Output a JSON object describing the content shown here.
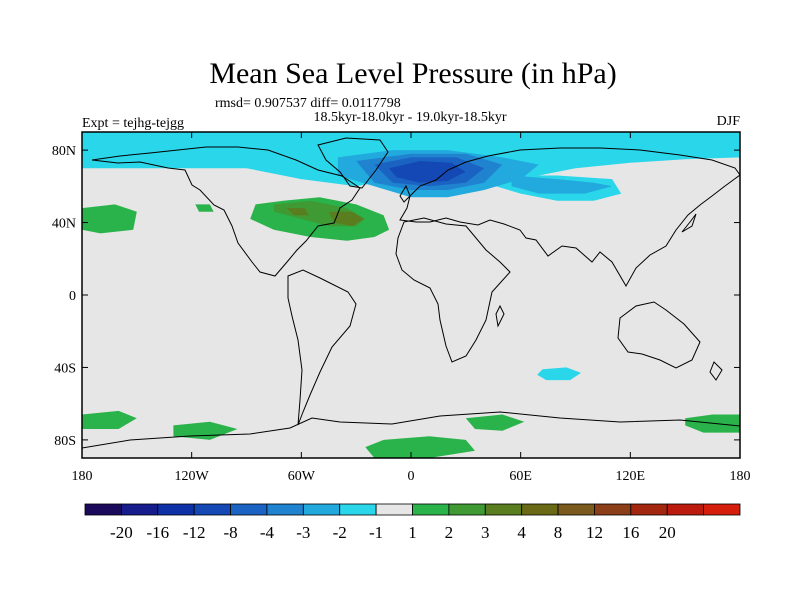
{
  "chart_data": {
    "type": "heatmap",
    "title": "Mean Sea Level Pressure (in hPa)",
    "stats_line": "rmsd= 0.907537 diff= 0.0117798",
    "period_line": "18.5kyr-18.0kyr - 19.0kyr-18.5kyr",
    "experiment": "Expt = tejhg-tejgg",
    "season": "DJF",
    "x_range": [
      -180,
      180
    ],
    "y_range": [
      -90,
      90
    ],
    "x_ticks": [
      {
        "value": -180,
        "label": "180"
      },
      {
        "value": -120,
        "label": "120W"
      },
      {
        "value": -60,
        "label": "60W"
      },
      {
        "value": 0,
        "label": "0"
      },
      {
        "value": 60,
        "label": "60E"
      },
      {
        "value": 120,
        "label": "120E"
      },
      {
        "value": 180,
        "label": "180"
      }
    ],
    "y_ticks": [
      {
        "value": 80,
        "label": "80N"
      },
      {
        "value": 40,
        "label": "40N"
      },
      {
        "value": 0,
        "label": "0"
      },
      {
        "value": -40,
        "label": "40S"
      },
      {
        "value": -80,
        "label": "80S"
      }
    ],
    "colorbar": {
      "colors": [
        "#1b0a5c",
        "#161c8c",
        "#0f31a8",
        "#1448b4",
        "#1b63c3",
        "#1f83cf",
        "#22a9de",
        "#2ad6ea",
        "#e6e6e6",
        "#2ab34a",
        "#3f9a33",
        "#5a7d1f",
        "#6a6a16",
        "#7b5a1e",
        "#8b3e17",
        "#a3260e",
        "#bb1a0c",
        "#d61e0c"
      ],
      "labels": [
        "-20",
        "-16",
        "-12",
        "-8",
        "-4",
        "-3",
        "-2",
        "-1",
        "1",
        "2",
        "3",
        "4",
        "8",
        "12",
        "16",
        "20"
      ]
    },
    "regions": [
      {
        "name": "arctic-negative-band",
        "level": "-1",
        "color": "#2ad6ea",
        "points": [
          [
            -180,
            90
          ],
          [
            180,
            90
          ],
          [
            180,
            76
          ],
          [
            150,
            75
          ],
          [
            120,
            73
          ],
          [
            90,
            70
          ],
          [
            70,
            66
          ],
          [
            40,
            60
          ],
          [
            20,
            56
          ],
          [
            0,
            58
          ],
          [
            -10,
            64
          ],
          [
            -30,
            60
          ],
          [
            -60,
            64
          ],
          [
            -90,
            70
          ],
          [
            -120,
            70
          ],
          [
            -150,
            70
          ],
          [
            -180,
            70
          ]
        ]
      },
      {
        "name": "siberia-negative-lobe",
        "level": "-1",
        "color": "#2ad6ea",
        "points": [
          [
            40,
            62
          ],
          [
            60,
            56
          ],
          [
            80,
            52
          ],
          [
            100,
            52
          ],
          [
            115,
            56
          ],
          [
            110,
            64
          ],
          [
            80,
            66
          ],
          [
            50,
            66
          ]
        ]
      },
      {
        "name": "north-atlantic-negative-2",
        "level": "-2",
        "color": "#22a9de",
        "points": [
          [
            -40,
            76
          ],
          [
            -10,
            80
          ],
          [
            20,
            80
          ],
          [
            50,
            76
          ],
          [
            70,
            72
          ],
          [
            60,
            64
          ],
          [
            40,
            58
          ],
          [
            20,
            54
          ],
          [
            0,
            54
          ],
          [
            -20,
            60
          ],
          [
            -40,
            66
          ]
        ]
      },
      {
        "name": "north-atlantic-negative-3",
        "level": "-3",
        "color": "#1f83cf",
        "points": [
          [
            -30,
            74
          ],
          [
            0,
            78
          ],
          [
            30,
            78
          ],
          [
            50,
            72
          ],
          [
            40,
            62
          ],
          [
            20,
            58
          ],
          [
            0,
            58
          ],
          [
            -20,
            62
          ]
        ]
      },
      {
        "name": "north-atlantic-negative-4",
        "level": "-4",
        "color": "#1b63c3",
        "points": [
          [
            -20,
            72
          ],
          [
            0,
            76
          ],
          [
            25,
            76
          ],
          [
            40,
            70
          ],
          [
            30,
            62
          ],
          [
            10,
            60
          ],
          [
            -10,
            62
          ]
        ]
      },
      {
        "name": "north-atlantic-negative-8",
        "level": "-8",
        "color": "#1448b4",
        "points": [
          [
            -12,
            70
          ],
          [
            5,
            74
          ],
          [
            22,
            73
          ],
          [
            30,
            68
          ],
          [
            20,
            63
          ],
          [
            5,
            62
          ],
          [
            -8,
            65
          ]
        ]
      },
      {
        "name": "asia-negative-2",
        "level": "-2",
        "color": "#22a9de",
        "points": [
          [
            55,
            66
          ],
          [
            80,
            64
          ],
          [
            100,
            62
          ],
          [
            110,
            60
          ],
          [
            95,
            56
          ],
          [
            70,
            56
          ],
          [
            55,
            60
          ]
        ]
      },
      {
        "name": "north-atlantic-positive-1",
        "level": "1",
        "color": "#2ab34a",
        "points": [
          [
            -85,
            50
          ],
          [
            -70,
            52
          ],
          [
            -50,
            54
          ],
          [
            -30,
            50
          ],
          [
            -15,
            44
          ],
          [
            -12,
            36
          ],
          [
            -20,
            32
          ],
          [
            -35,
            30
          ],
          [
            -55,
            32
          ],
          [
            -75,
            36
          ],
          [
            -88,
            42
          ]
        ]
      },
      {
        "name": "north-atlantic-positive-2",
        "level": "2",
        "color": "#3f9a33",
        "points": [
          [
            -75,
            50
          ],
          [
            -55,
            52
          ],
          [
            -35,
            48
          ],
          [
            -25,
            42
          ],
          [
            -30,
            38
          ],
          [
            -45,
            38
          ],
          [
            -60,
            42
          ],
          [
            -75,
            46
          ]
        ]
      },
      {
        "name": "north-atlantic-positive-3",
        "level": "3",
        "color": "#5a7d1f",
        "points": [
          [
            -45,
            46
          ],
          [
            -32,
            46
          ],
          [
            -26,
            42
          ],
          [
            -32,
            38
          ],
          [
            -42,
            40
          ]
        ]
      },
      {
        "name": "north-atlantic-positive-3b",
        "level": "3",
        "color": "#5a7d1f",
        "points": [
          [
            -68,
            48
          ],
          [
            -58,
            48
          ],
          [
            -56,
            44
          ],
          [
            -64,
            44
          ]
        ]
      },
      {
        "name": "north-pacific-positive-1",
        "level": "1",
        "color": "#2ab34a",
        "points": [
          [
            -180,
            48
          ],
          [
            -162,
            50
          ],
          [
            -150,
            46
          ],
          [
            -152,
            36
          ],
          [
            -170,
            34
          ],
          [
            -180,
            36
          ]
        ]
      },
      {
        "name": "gulf-small-positive",
        "level": "1",
        "color": "#2ab34a",
        "points": [
          [
            -118,
            50
          ],
          [
            -110,
            50
          ],
          [
            -108,
            46
          ],
          [
            -116,
            46
          ]
        ]
      },
      {
        "name": "south-indian-negative-1",
        "level": "-1",
        "color": "#2ad6ea",
        "points": [
          [
            72,
            -41
          ],
          [
            85,
            -40
          ],
          [
            93,
            -43
          ],
          [
            87,
            -47
          ],
          [
            74,
            -47
          ],
          [
            69,
            -44
          ]
        ]
      },
      {
        "name": "south-pacific-positive-west",
        "level": "1",
        "color": "#2ab34a",
        "points": [
          [
            -180,
            -66
          ],
          [
            -160,
            -64
          ],
          [
            -150,
            -68
          ],
          [
            -160,
            -74
          ],
          [
            -180,
            -74
          ]
        ]
      },
      {
        "name": "south-pacific-positive-east",
        "level": "1",
        "color": "#2ab34a",
        "points": [
          [
            150,
            -68
          ],
          [
            165,
            -66
          ],
          [
            180,
            -66
          ],
          [
            180,
            -76
          ],
          [
            160,
            -76
          ],
          [
            150,
            -72
          ]
        ]
      },
      {
        "name": "southern-ocean-positive-a",
        "level": "1",
        "color": "#2ab34a",
        "points": [
          [
            -130,
            -72
          ],
          [
            -110,
            -70
          ],
          [
            -95,
            -74
          ],
          [
            -110,
            -80
          ],
          [
            -130,
            -78
          ]
        ]
      },
      {
        "name": "southern-ocean-positive-b",
        "level": "1",
        "color": "#2ab34a",
        "points": [
          [
            30,
            -68
          ],
          [
            50,
            -66
          ],
          [
            62,
            -70
          ],
          [
            50,
            -75
          ],
          [
            35,
            -74
          ]
        ]
      },
      {
        "name": "antarctic-positive",
        "level": "1",
        "color": "#2ab34a",
        "points": [
          [
            -15,
            -80
          ],
          [
            10,
            -78
          ],
          [
            30,
            -80
          ],
          [
            35,
            -86
          ],
          [
            10,
            -90
          ],
          [
            -20,
            -90
          ],
          [
            -25,
            -84
          ]
        ]
      }
    ]
  }
}
